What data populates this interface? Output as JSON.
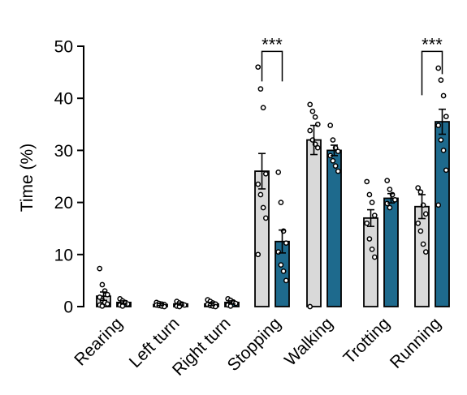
{
  "chart_data": {
    "type": "bar",
    "title": "",
    "xlabel": "",
    "ylabel": "Time (%)",
    "ylim": [
      0,
      50
    ],
    "yticks": [
      0,
      10,
      20,
      30,
      40,
      50
    ],
    "grid": false,
    "categories": [
      "Rearing",
      "Left turn",
      "Right turn",
      "Stopping",
      "Walking",
      "Trotting",
      "Running"
    ],
    "series": [
      {
        "color": "#d9d9d9",
        "values": [
          2.0,
          0.4,
          0.5,
          26.0,
          32.0,
          17.0,
          19.2
        ],
        "errors": [
          0.8,
          0.2,
          0.3,
          3.4,
          2.8,
          1.6,
          2.3
        ],
        "points": [
          [
            7.3,
            4.2,
            3.0,
            2.3,
            1.8,
            1.2,
            0.8,
            0.5,
            0.3,
            0.1
          ],
          [
            0.8,
            0.6,
            0.5,
            0.4,
            0.3,
            0.2,
            0.1,
            0.0
          ],
          [
            1.3,
            1.0,
            0.7,
            0.5,
            0.4,
            0.2,
            0.1,
            0.0
          ],
          [
            46.0,
            41.8,
            38.2,
            25.5,
            23.5,
            21.5,
            19.0,
            17.0,
            10.0
          ],
          [
            38.8,
            37.5,
            36.4,
            35.0,
            33.8,
            32.0,
            31.2,
            30.5,
            0.0
          ],
          [
            24.0,
            21.5,
            20.0,
            17.5,
            16.0,
            13.0,
            11.0,
            9.5
          ],
          [
            22.8,
            22.0,
            19.5,
            17.8,
            16.0,
            14.5,
            12.0,
            10.5
          ]
        ]
      },
      {
        "color": "#1e6a8d",
        "values": [
          0.8,
          0.5,
          0.8,
          12.5,
          30.0,
          20.8,
          35.5
        ],
        "errors": [
          0.3,
          0.2,
          0.3,
          2.2,
          1.0,
          0.9,
          2.4
        ],
        "points": [
          [
            1.5,
            1.1,
            0.8,
            0.5,
            0.3,
            0.1
          ],
          [
            1.0,
            0.7,
            0.5,
            0.3,
            0.1,
            0.0
          ],
          [
            1.5,
            1.2,
            0.9,
            0.6,
            0.3,
            0.1
          ],
          [
            25.8,
            20.0,
            14.5,
            12.2,
            10.5,
            8.0,
            6.8,
            5.0
          ],
          [
            34.8,
            32.0,
            30.5,
            29.8,
            29.0,
            28.0,
            27.0,
            26.0
          ],
          [
            24.2,
            22.5,
            21.5,
            20.5,
            19.8,
            19.0
          ],
          [
            45.8,
            43.5,
            40.5,
            36.5,
            34.8,
            32.0,
            30.0,
            26.2,
            19.5
          ]
        ]
      }
    ],
    "annotations": [
      {
        "text": "***",
        "category_index": 3,
        "y": 49
      },
      {
        "text": "***",
        "category_index": 6,
        "y": 49
      }
    ]
  }
}
